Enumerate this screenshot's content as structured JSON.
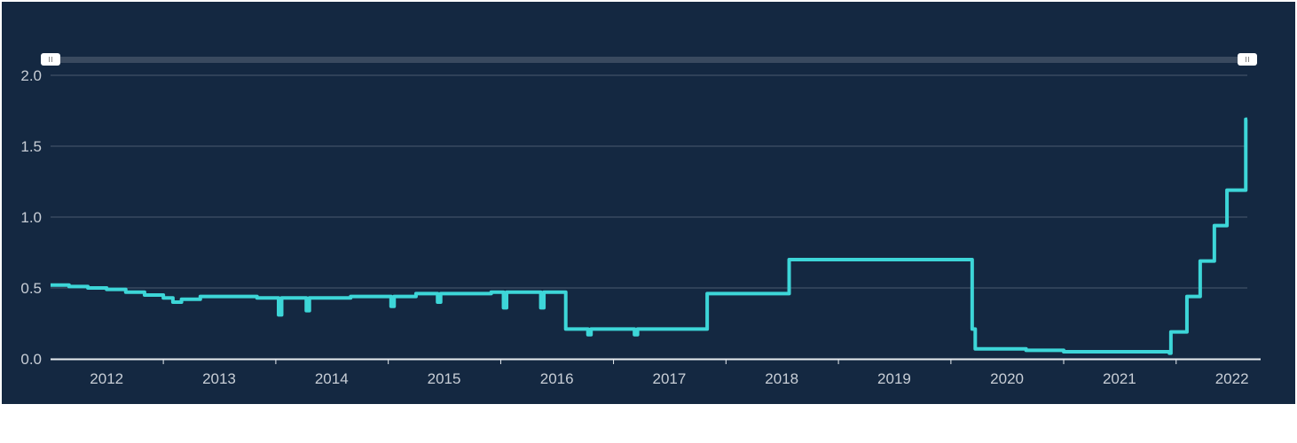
{
  "chart_data": {
    "type": "line",
    "step": true,
    "title": "",
    "xlabel": "",
    "ylabel": "",
    "ylim": [
      0,
      2.0
    ],
    "xlim": [
      "2012-01-01",
      "2022-08-20"
    ],
    "grid": true,
    "yticks": [
      "0.0",
      "0.5",
      "1.0",
      "1.5",
      "2.0"
    ],
    "xtick_labels": [
      "2012",
      "2013",
      "2014",
      "2015",
      "2016",
      "2017",
      "2018",
      "2019",
      "2020",
      "2021",
      "2022"
    ],
    "line_color": "#3dd6d8",
    "background": "#142841",
    "range_selector": {
      "start": "2012-01-01",
      "end": "2022-08-20"
    },
    "series": [
      {
        "points": [
          [
            "2012-01-01",
            0.52
          ],
          [
            "2012-03-01",
            0.51
          ],
          [
            "2012-05-01",
            0.5
          ],
          [
            "2012-07-01",
            0.49
          ],
          [
            "2012-09-01",
            0.47
          ],
          [
            "2012-11-01",
            0.45
          ],
          [
            "2013-01-01",
            0.43
          ],
          [
            "2013-02-01",
            0.4
          ],
          [
            "2013-03-01",
            0.42
          ],
          [
            "2013-05-01",
            0.44
          ],
          [
            "2013-08-01",
            0.44
          ],
          [
            "2013-11-01",
            0.43
          ],
          [
            "2014-01-01",
            0.43
          ],
          [
            "2014-01-10",
            0.31
          ],
          [
            "2014-01-20",
            0.43
          ],
          [
            "2014-04-01",
            0.43
          ],
          [
            "2014-04-10",
            0.34
          ],
          [
            "2014-04-20",
            0.43
          ],
          [
            "2014-09-01",
            0.44
          ],
          [
            "2015-01-01",
            0.44
          ],
          [
            "2015-01-10",
            0.37
          ],
          [
            "2015-01-20",
            0.44
          ],
          [
            "2015-04-01",
            0.46
          ],
          [
            "2015-06-01",
            0.46
          ],
          [
            "2015-06-10",
            0.4
          ],
          [
            "2015-06-20",
            0.46
          ],
          [
            "2015-12-01",
            0.47
          ],
          [
            "2016-01-01",
            0.47
          ],
          [
            "2016-01-10",
            0.36
          ],
          [
            "2016-01-20",
            0.47
          ],
          [
            "2016-05-01",
            0.47
          ],
          [
            "2016-05-10",
            0.36
          ],
          [
            "2016-05-20",
            0.47
          ],
          [
            "2016-07-20",
            0.47
          ],
          [
            "2016-07-30",
            0.21
          ],
          [
            "2016-10-01",
            0.21
          ],
          [
            "2016-10-10",
            0.17
          ],
          [
            "2016-10-20",
            0.21
          ],
          [
            "2017-03-01",
            0.21
          ],
          [
            "2017-03-10",
            0.17
          ],
          [
            "2017-03-20",
            0.21
          ],
          [
            "2017-10-25",
            0.21
          ],
          [
            "2017-11-01",
            0.46
          ],
          [
            "2018-07-15",
            0.46
          ],
          [
            "2018-07-25",
            0.7
          ],
          [
            "2020-03-05",
            0.7
          ],
          [
            "2020-03-10",
            0.21
          ],
          [
            "2020-03-20",
            0.07
          ],
          [
            "2020-09-01",
            0.06
          ],
          [
            "2021-01-01",
            0.05
          ],
          [
            "2021-12-10",
            0.04
          ],
          [
            "2021-12-15",
            0.19
          ],
          [
            "2022-02-01",
            0.19
          ],
          [
            "2022-02-05",
            0.44
          ],
          [
            "2022-03-15",
            0.44
          ],
          [
            "2022-03-20",
            0.69
          ],
          [
            "2022-05-01",
            0.69
          ],
          [
            "2022-05-05",
            0.94
          ],
          [
            "2022-06-10",
            0.94
          ],
          [
            "2022-06-15",
            1.19
          ],
          [
            "2022-08-10",
            1.19
          ],
          [
            "2022-08-15",
            1.69
          ],
          [
            "2022-08-20",
            1.69
          ]
        ]
      }
    ]
  }
}
